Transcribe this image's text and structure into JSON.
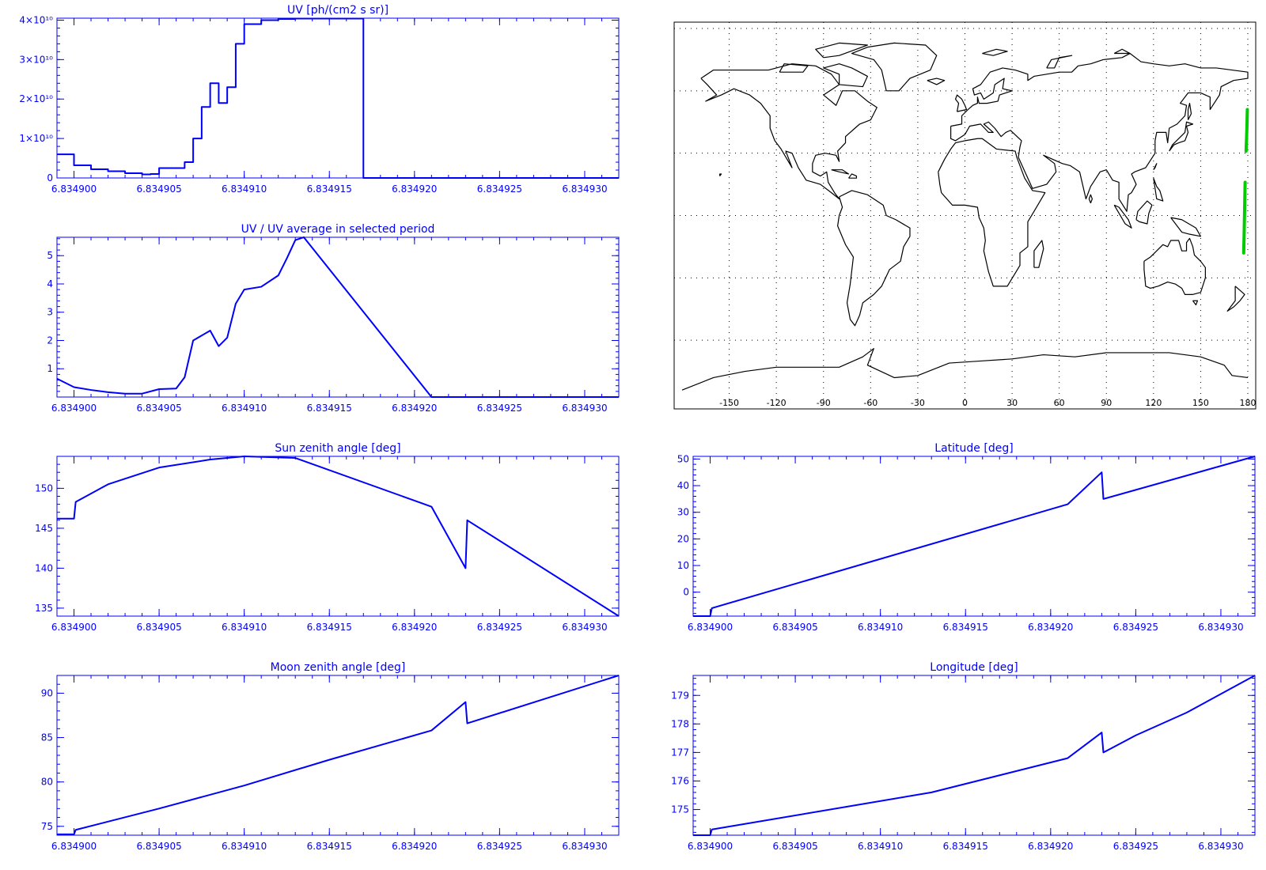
{
  "colors": {
    "plot": "#0000ff",
    "map": "#000000",
    "track": "#00cc00",
    "grid": "#000000"
  },
  "x_ticks": [
    "6.834900",
    "6.834905",
    "6.834910",
    "6.834915",
    "6.834920",
    "6.834925",
    "6.834930"
  ],
  "chart_data": [
    {
      "id": "uv",
      "type": "line",
      "step": true,
      "title": "UV [ph/(cm2 s sr)]",
      "xlim": [
        6.834899,
        6.834932
      ],
      "ylim": [
        0,
        40500000000
      ],
      "y_ticks": [
        {
          "v": 0,
          "t": "0"
        },
        {
          "v": 10000000000,
          "t": "1×10¹⁰"
        },
        {
          "v": 20000000000,
          "t": "2×10¹⁰"
        },
        {
          "v": 30000000000,
          "t": "3×10¹⁰"
        },
        {
          "v": 40000000000,
          "t": "4×10¹⁰"
        }
      ],
      "series": [
        {
          "x": [
            6.834899,
            6.8349,
            6.834901,
            6.834902,
            6.834903,
            6.834904,
            6.8349045,
            6.834905,
            6.834906,
            6.8349065,
            6.834907,
            6.8349075,
            6.834908,
            6.834908,
            6.8349085,
            6.834909,
            6.8349095,
            6.83491,
            6.834911,
            6.834912,
            6.834913,
            6.834915,
            6.834917,
            6.834917,
            6.834917,
            6.834925,
            6.834932
          ],
          "y": [
            6000000000,
            3200000000,
            2200000000,
            1700000000,
            1200000000,
            900000000,
            1000000000,
            2500000000,
            2500000000,
            4000000000,
            10000000000,
            18000000000,
            23000000000,
            24000000000,
            19000000000,
            23000000000,
            34000000000,
            39000000000,
            40000000000,
            40300000000,
            40400000000,
            40400000000,
            40400000000,
            0,
            -300000000,
            -300000000,
            0
          ]
        }
      ]
    },
    {
      "id": "ratio",
      "type": "line",
      "title": "UV / UV average in selected period",
      "xlim": [
        6.834899,
        6.834932
      ],
      "ylim": [
        0,
        5.65
      ],
      "y_ticks": [
        {
          "v": 1,
          "t": "1"
        },
        {
          "v": 2,
          "t": "2"
        },
        {
          "v": 3,
          "t": "3"
        },
        {
          "v": 4,
          "t": "4"
        },
        {
          "v": 5,
          "t": "5"
        }
      ],
      "series": [
        {
          "x": [
            6.834899,
            6.8349,
            6.834901,
            6.834902,
            6.834903,
            6.834904,
            6.834905,
            6.834906,
            6.8349065,
            6.834907,
            6.834908,
            6.8349085,
            6.834909,
            6.8349095,
            6.83491,
            6.834911,
            6.834912,
            6.8349125,
            6.834913,
            6.8349135,
            6.834921,
            6.834932
          ],
          "y": [
            0.65,
            0.35,
            0.25,
            0.17,
            0.12,
            0.12,
            0.28,
            0.3,
            0.7,
            2.0,
            2.35,
            1.8,
            2.1,
            3.3,
            3.8,
            3.9,
            4.3,
            4.9,
            5.55,
            5.65,
            0.0,
            0.0
          ]
        }
      ]
    },
    {
      "id": "sun",
      "type": "line",
      "title": "Sun zenith angle [deg]",
      "xlim": [
        6.834899,
        6.834932
      ],
      "ylim": [
        134,
        154
      ],
      "y_ticks": [
        {
          "v": 135,
          "t": "135"
        },
        {
          "v": 140,
          "t": "140"
        },
        {
          "v": 145,
          "t": "145"
        },
        {
          "v": 150,
          "t": "150"
        }
      ],
      "series": [
        {
          "x": [
            6.834899,
            6.8349,
            6.8349001,
            6.834902,
            6.834905,
            6.834908,
            6.83491,
            6.834913,
            6.834921,
            6.834923,
            6.8349231,
            6.834932
          ],
          "y": [
            146.2,
            146.2,
            148.3,
            150.5,
            152.6,
            153.6,
            154.1,
            153.8,
            147.7,
            140.0,
            146.0,
            134.0
          ]
        }
      ]
    },
    {
      "id": "lat",
      "type": "line",
      "title": "Latitude [deg]",
      "xlim": [
        6.834899,
        6.834932
      ],
      "ylim": [
        -9,
        51
      ],
      "y_ticks": [
        {
          "v": 0,
          "t": "0"
        },
        {
          "v": 10,
          "t": "10"
        },
        {
          "v": 20,
          "t": "20"
        },
        {
          "v": 30,
          "t": "30"
        },
        {
          "v": 40,
          "t": "40"
        },
        {
          "v": 50,
          "t": "50"
        }
      ],
      "series": [
        {
          "x": [
            6.834899,
            6.8349,
            6.8349001,
            6.834921,
            6.834923,
            6.8349231,
            6.834932
          ],
          "y": [
            -9,
            -9,
            -6,
            33,
            45,
            35,
            51
          ]
        }
      ]
    },
    {
      "id": "moon",
      "type": "line",
      "title": "Moon zenith angle [deg]",
      "xlim": [
        6.834899,
        6.834932
      ],
      "ylim": [
        74,
        92
      ],
      "y_ticks": [
        {
          "v": 75,
          "t": "75"
        },
        {
          "v": 80,
          "t": "80"
        },
        {
          "v": 85,
          "t": "85"
        },
        {
          "v": 90,
          "t": "90"
        }
      ],
      "series": [
        {
          "x": [
            6.834899,
            6.8349,
            6.8349001,
            6.834905,
            6.83491,
            6.834915,
            6.834921,
            6.834923,
            6.8349231,
            6.834932
          ],
          "y": [
            74.1,
            74.1,
            74.6,
            77.0,
            79.6,
            82.5,
            85.8,
            89.0,
            86.6,
            92.0
          ]
        }
      ]
    },
    {
      "id": "lon",
      "type": "line",
      "title": "Longitude [deg]",
      "xlim": [
        6.834899,
        6.834932
      ],
      "ylim": [
        174.1,
        179.7
      ],
      "y_ticks": [
        {
          "v": 175,
          "t": "175"
        },
        {
          "v": 176,
          "t": "176"
        },
        {
          "v": 177,
          "t": "177"
        },
        {
          "v": 178,
          "t": "178"
        },
        {
          "v": 179,
          "t": "179"
        }
      ],
      "series": [
        {
          "x": [
            6.834899,
            6.8349,
            6.8349001,
            6.834913,
            6.834921,
            6.834923,
            6.8349231,
            6.834925,
            6.834928,
            6.834932
          ],
          "y": [
            174.1,
            174.1,
            174.3,
            175.6,
            176.8,
            177.7,
            177.0,
            177.6,
            178.4,
            179.7
          ]
        }
      ]
    }
  ],
  "map": {
    "lon_ticks": [
      "-150",
      "-120",
      "-90",
      "-60",
      "-30",
      "0",
      "30",
      "60",
      "90",
      "120",
      "150",
      "180"
    ],
    "xlim": [
      -180,
      180
    ],
    "ylim": [
      -90,
      90
    ],
    "track": [
      {
        "lon": [
          179.7,
          179.5,
          179.2,
          178.9
        ],
        "lat": [
          51,
          44,
          37,
          31
        ]
      },
      {
        "lon": [
          178.3,
          178.0,
          177.7,
          177.4
        ],
        "lat": [
          16,
          4,
          -8,
          -18
        ]
      }
    ]
  }
}
